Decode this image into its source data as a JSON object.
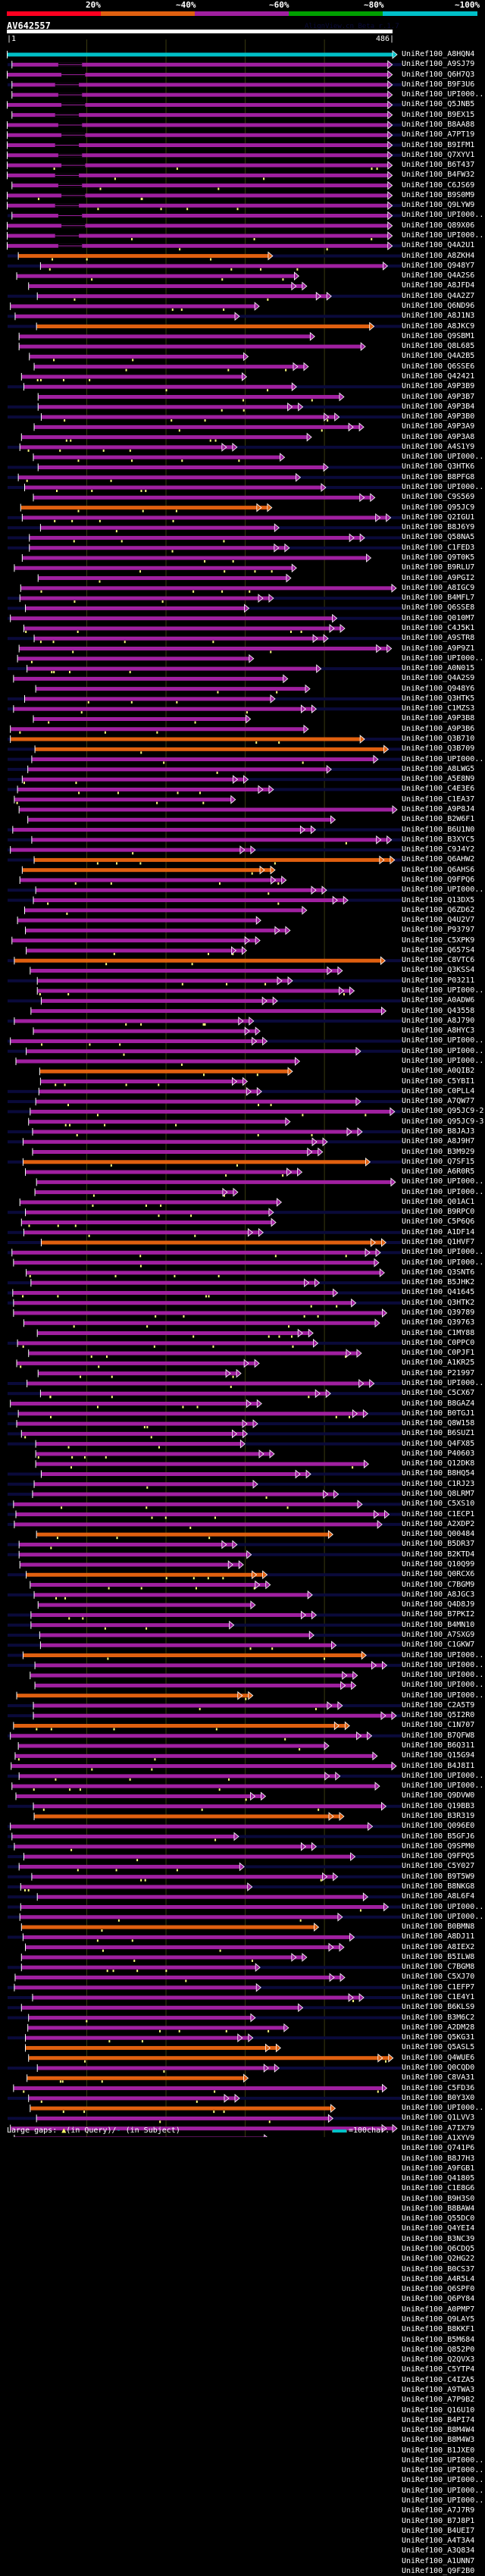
{
  "header": {
    "percent_labels": [
      "20%",
      "~40%",
      "~60%",
      "~80%",
      "~100%"
    ],
    "scale_colors": [
      "#ff0020",
      "#e06010",
      "#a020a0",
      "#00a000",
      "#00c0c8"
    ],
    "query_id": "AV642557",
    "watermark": "AlignView.cn Beta r.1.7",
    "ruler_start": "|1",
    "ruler_end": "486|",
    "query_length": 486
  },
  "colors": {
    "top_hit": "#00c0c8",
    "hit_mid": "#a020a0",
    "hit_low": "#e06010",
    "gap_marker": "#ffff80",
    "gridline": "#3a3a10",
    "subject_extension": "#0a0a3a"
  },
  "footer": {
    "large_gaps_label": "Large gaps:",
    "query_gap_text": "(in Query)/",
    "subject_gap_symbol": "-",
    "subject_gap_text": "(in Subject)",
    "scale_legend": "=100char."
  },
  "hits": [
    {
      "label": "UniRef100_A8HQN4",
      "color": "cyan"
    },
    {
      "label": "UniRef100_A9SJ79",
      "color": "magenta"
    },
    {
      "label": "UniRef100_Q6H7Q3",
      "color": "magenta"
    },
    {
      "label": "UniRef100_B9F3U6",
      "color": "magenta"
    },
    {
      "label": "UniRef100_UPI000..",
      "color": "magenta"
    },
    {
      "label": "UniRef100_Q5JNB5",
      "color": "magenta"
    },
    {
      "label": "UniRef100_B9EX15",
      "color": "magenta"
    },
    {
      "label": "UniRef100_B8AA88",
      "color": "magenta"
    },
    {
      "label": "UniRef100_A7PT19",
      "color": "magenta"
    },
    {
      "label": "UniRef100_B9IFM1",
      "color": "magenta"
    },
    {
      "label": "UniRef100_Q7XYV1",
      "color": "magenta"
    },
    {
      "label": "UniRef100_B6T437",
      "color": "magenta"
    },
    {
      "label": "UniRef100_B4FW32",
      "color": "magenta"
    },
    {
      "label": "UniRef100_C6JS69",
      "color": "magenta"
    },
    {
      "label": "UniRef100_B9S0M9",
      "color": "magenta"
    },
    {
      "label": "UniRef100_Q9LYW9",
      "color": "magenta"
    },
    {
      "label": "UniRef100_UPI000..",
      "color": "magenta"
    },
    {
      "label": "UniRef100_Q89X06",
      "color": "magenta"
    },
    {
      "label": "UniRef100_UPI000..",
      "color": "magenta"
    },
    {
      "label": "UniRef100_Q4A2U1",
      "color": "magenta"
    },
    {
      "label": "UniRef100_A8ZKH4",
      "color": "orange"
    },
    {
      "label": "UniRef100_Q948Y7",
      "color": "magenta"
    },
    {
      "label": "UniRef100_Q4A2S6",
      "color": "magenta"
    },
    {
      "label": "UniRef100_A8JFD4",
      "color": "magenta"
    },
    {
      "label": "UniRef100_Q4A2Z7",
      "color": "magenta"
    },
    {
      "label": "UniRef100_Q6ND96",
      "color": "magenta"
    },
    {
      "label": "UniRef100_A8J1N3",
      "color": "magenta"
    },
    {
      "label": "UniRef100_A8JKC9",
      "color": "orange"
    },
    {
      "label": "UniRef100_Q9SBM1",
      "color": "magenta"
    },
    {
      "label": "UniRef100_Q8L685",
      "color": "magenta"
    },
    {
      "label": "UniRef100_Q4A2B5",
      "color": "magenta"
    },
    {
      "label": "UniRef100_Q6SSE6",
      "color": "magenta"
    },
    {
      "label": "UniRef100_Q42421",
      "color": "magenta"
    },
    {
      "label": "UniRef100_A9P3B9",
      "color": "magenta"
    },
    {
      "label": "UniRef100_A9P3B7",
      "color": "magenta"
    },
    {
      "label": "UniRef100_A9P3B4",
      "color": "magenta"
    },
    {
      "label": "UniRef100_A9P3B0",
      "color": "magenta"
    },
    {
      "label": "UniRef100_A9P3A9",
      "color": "magenta"
    },
    {
      "label": "UniRef100_A9P3A8",
      "color": "magenta"
    },
    {
      "label": "UniRef100_A4S1Y9",
      "color": "magenta"
    },
    {
      "label": "UniRef100_UPI000..",
      "color": "magenta"
    },
    {
      "label": "UniRef100_Q3HTK6",
      "color": "magenta"
    },
    {
      "label": "UniRef100_B8PFG8",
      "color": "magenta"
    },
    {
      "label": "UniRef100_UPI000..",
      "color": "magenta"
    },
    {
      "label": "UniRef100_C9S569",
      "color": "magenta"
    },
    {
      "label": "UniRef100_Q95JC9",
      "color": "orange"
    },
    {
      "label": "UniRef100_Q2IGU1",
      "color": "magenta"
    },
    {
      "label": "UniRef100_B8J6Y9",
      "color": "magenta"
    },
    {
      "label": "UniRef100_Q58NA5",
      "color": "magenta"
    },
    {
      "label": "UniRef100_C1FED3",
      "color": "magenta"
    },
    {
      "label": "UniRef100_Q9T0K5",
      "color": "magenta"
    },
    {
      "label": "UniRef100_B9RLU7",
      "color": "magenta"
    },
    {
      "label": "UniRef100_A9PGI2",
      "color": "magenta"
    },
    {
      "label": "UniRef100_A8IGC9",
      "color": "magenta"
    },
    {
      "label": "UniRef100_B4MFL7",
      "color": "magenta"
    },
    {
      "label": "UniRef100_Q6SSE8",
      "color": "magenta"
    },
    {
      "label": "UniRef100_Q010M7",
      "color": "magenta"
    },
    {
      "label": "UniRef100_C4J5K1",
      "color": "magenta"
    },
    {
      "label": "UniRef100_A9STR8",
      "color": "magenta"
    },
    {
      "label": "UniRef100_A9P9Z1",
      "color": "magenta"
    },
    {
      "label": "UniRef100_UPI000..",
      "color": "magenta"
    },
    {
      "label": "UniRef100_A0N015",
      "color": "magenta"
    },
    {
      "label": "UniRef100_Q4A2S9",
      "color": "magenta"
    },
    {
      "label": "UniRef100_Q948Y6",
      "color": "magenta"
    },
    {
      "label": "UniRef100_Q3HTK5",
      "color": "magenta"
    },
    {
      "label": "UniRef100_C1MZS3",
      "color": "magenta"
    },
    {
      "label": "UniRef100_A9P3B8",
      "color": "magenta"
    },
    {
      "label": "UniRef100_A9P3B6",
      "color": "magenta"
    },
    {
      "label": "UniRef100_Q3B710",
      "color": "orange"
    },
    {
      "label": "UniRef100_Q3B709",
      "color": "orange"
    },
    {
      "label": "UniRef100_UPI000..",
      "color": "magenta"
    },
    {
      "label": "UniRef100_A8LWG5",
      "color": "magenta"
    },
    {
      "label": "UniRef100_A5E8N9",
      "color": "magenta"
    },
    {
      "label": "UniRef100_C4E3E6",
      "color": "magenta"
    },
    {
      "label": "UniRef100_C1EA37",
      "color": "magenta"
    },
    {
      "label": "UniRef100_A9P8J4",
      "color": "magenta"
    },
    {
      "label": "UniRef100_B2W6F1",
      "color": "magenta"
    },
    {
      "label": "UniRef100_B6U1N0",
      "color": "magenta"
    },
    {
      "label": "UniRef100_B3XYC5",
      "color": "magenta"
    },
    {
      "label": "UniRef100_C9J4Y2",
      "color": "magenta"
    },
    {
      "label": "UniRef100_Q6AHW2",
      "color": "orange"
    },
    {
      "label": "UniRef100_Q6AHS6",
      "color": "orange"
    },
    {
      "label": "UniRef100_Q9FPQ6",
      "color": "magenta"
    },
    {
      "label": "UniRef100_UPI000..",
      "color": "magenta"
    },
    {
      "label": "UniRef100_Q13DX5",
      "color": "magenta"
    },
    {
      "label": "UniRef100_Q6ZD62",
      "color": "magenta"
    },
    {
      "label": "UniRef100_Q4U2V7",
      "color": "magenta"
    },
    {
      "label": "UniRef100_P93797",
      "color": "magenta"
    },
    {
      "label": "UniRef100_C5XPK9",
      "color": "magenta"
    },
    {
      "label": "UniRef100_Q657S4",
      "color": "magenta"
    },
    {
      "label": "UniRef100_C8VTC6",
      "color": "orange"
    },
    {
      "label": "UniRef100_Q3KSS4",
      "color": "magenta"
    },
    {
      "label": "UniRef100_P03211",
      "color": "magenta"
    },
    {
      "label": "UniRef100_UPI000..",
      "color": "magenta"
    },
    {
      "label": "UniRef100_A0ADW6",
      "color": "magenta"
    },
    {
      "label": "UniRef100_Q43558",
      "color": "magenta"
    },
    {
      "label": "UniRef100_A8J790",
      "color": "magenta"
    },
    {
      "label": "UniRef100_A8HYC3",
      "color": "magenta"
    },
    {
      "label": "UniRef100_UPI000..",
      "color": "magenta"
    },
    {
      "label": "UniRef100_UPI000..",
      "color": "magenta"
    },
    {
      "label": "UniRef100_UPI000..",
      "color": "magenta"
    },
    {
      "label": "UniRef100_A0QIB2",
      "color": "orange"
    },
    {
      "label": "UniRef100_C5YBI1",
      "color": "magenta"
    },
    {
      "label": "UniRef100_C0PLL4",
      "color": "magenta"
    },
    {
      "label": "UniRef100_A7QW77",
      "color": "magenta"
    },
    {
      "label": "UniRef100_Q95JC9-2",
      "color": "magenta"
    },
    {
      "label": "UniRef100_Q95JC9-3",
      "color": "magenta"
    },
    {
      "label": "UniRef100_B8JAJ3",
      "color": "magenta"
    },
    {
      "label": "UniRef100_A8J9H7",
      "color": "magenta"
    },
    {
      "label": "UniRef100_B3M929",
      "color": "magenta"
    },
    {
      "label": "UniRef100_Q7SF15",
      "color": "orange"
    },
    {
      "label": "UniRef100_A6R0R5",
      "color": "magenta"
    },
    {
      "label": "UniRef100_UPI000..",
      "color": "magenta"
    },
    {
      "label": "UniRef100_UPI000..",
      "color": "magenta"
    },
    {
      "label": "UniRef100_Q01AC1",
      "color": "magenta"
    },
    {
      "label": "UniRef100_B9RPC0",
      "color": "magenta"
    },
    {
      "label": "UniRef100_C5P6Q6",
      "color": "magenta"
    },
    {
      "label": "UniRef100_A1DF14",
      "color": "magenta"
    },
    {
      "label": "UniRef100_Q1HVF7",
      "color": "orange"
    },
    {
      "label": "UniRef100_UPI000..",
      "color": "magenta"
    },
    {
      "label": "UniRef100_UPI000..",
      "color": "magenta"
    },
    {
      "label": "UniRef100_Q3SNT6",
      "color": "magenta"
    },
    {
      "label": "UniRef100_B5JHK2",
      "color": "magenta"
    },
    {
      "label": "UniRef100_Q41645",
      "color": "magenta"
    },
    {
      "label": "UniRef100_Q3HTK2",
      "color": "magenta"
    },
    {
      "label": "UniRef100_Q39789",
      "color": "magenta"
    },
    {
      "label": "UniRef100_Q39763",
      "color": "magenta"
    },
    {
      "label": "UniRef100_C1MY88",
      "color": "magenta"
    },
    {
      "label": "UniRef100_C0PPC0",
      "color": "magenta"
    },
    {
      "label": "UniRef100_C0PJF1",
      "color": "magenta"
    },
    {
      "label": "UniRef100_A1KR25",
      "color": "magenta"
    },
    {
      "label": "UniRef100_P21997",
      "color": "magenta"
    },
    {
      "label": "UniRef100_UPI000..",
      "color": "magenta"
    },
    {
      "label": "UniRef100_C5CX67",
      "color": "magenta"
    },
    {
      "label": "UniRef100_B8GAZ4",
      "color": "magenta"
    },
    {
      "label": "UniRef100_B0TGJ1",
      "color": "magenta"
    },
    {
      "label": "UniRef100_Q8W158",
      "color": "magenta"
    },
    {
      "label": "UniRef100_B6SUZ1",
      "color": "magenta"
    },
    {
      "label": "UniRef100_Q4FX85",
      "color": "magenta"
    },
    {
      "label": "UniRef100_P40603",
      "color": "magenta"
    },
    {
      "label": "UniRef100_Q12DK8",
      "color": "magenta"
    },
    {
      "label": "UniRef100_B8HQ54",
      "color": "magenta"
    },
    {
      "label": "UniRef100_C1RJ23",
      "color": "magenta"
    },
    {
      "label": "UniRef100_Q8LRM7",
      "color": "magenta"
    },
    {
      "label": "UniRef100_C5XS10",
      "color": "magenta"
    },
    {
      "label": "UniRef100_C1ECP1",
      "color": "magenta"
    },
    {
      "label": "UniRef100_A2XDP2",
      "color": "magenta"
    },
    {
      "label": "UniRef100_Q00484",
      "color": "orange"
    },
    {
      "label": "UniRef100_B5DR37",
      "color": "magenta"
    },
    {
      "label": "UniRef100_B2KTD4",
      "color": "magenta"
    },
    {
      "label": "UniRef100_Q10Q99",
      "color": "magenta"
    },
    {
      "label": "UniRef100_Q0RCX6",
      "color": "orange"
    },
    {
      "label": "UniRef100_C7BGM9",
      "color": "magenta"
    },
    {
      "label": "UniRef100_A8JGC3",
      "color": "magenta"
    },
    {
      "label": "UniRef100_Q4D8J9",
      "color": "magenta"
    },
    {
      "label": "UniRef100_B7PKI2",
      "color": "magenta"
    },
    {
      "label": "UniRef100_B4MN10",
      "color": "magenta"
    },
    {
      "label": "UniRef100_A7SXG9",
      "color": "magenta"
    },
    {
      "label": "UniRef100_C1GKW7",
      "color": "magenta"
    },
    {
      "label": "UniRef100_UPI000..",
      "color": "orange"
    },
    {
      "label": "UniRef100_UPI000..",
      "color": "magenta"
    },
    {
      "label": "UniRef100_UPI000..",
      "color": "magenta"
    },
    {
      "label": "UniRef100_UPI000..",
      "color": "magenta"
    },
    {
      "label": "UniRef100_UPI000..",
      "color": "orange"
    },
    {
      "label": "UniRef100_C2A5T9",
      "color": "magenta"
    },
    {
      "label": "UniRef100_Q5I2R0",
      "color": "magenta"
    },
    {
      "label": "UniRef100_C1N707",
      "color": "orange"
    },
    {
      "label": "UniRef100_B7QFW8",
      "color": "magenta"
    },
    {
      "label": "UniRef100_B6Q311",
      "color": "magenta"
    },
    {
      "label": "UniRef100_Q15G94",
      "color": "magenta"
    },
    {
      "label": "UniRef100_B4J8I1",
      "color": "magenta"
    },
    {
      "label": "UniRef100_UPI000..",
      "color": "magenta"
    },
    {
      "label": "UniRef100_UPI000..",
      "color": "magenta"
    },
    {
      "label": "UniRef100_Q9DVW0",
      "color": "magenta"
    },
    {
      "label": "UniRef100_Q19BB3",
      "color": "magenta"
    },
    {
      "label": "UniRef100_B3R319",
      "color": "orange"
    },
    {
      "label": "UniRef100_Q096E0",
      "color": "magenta"
    },
    {
      "label": "UniRef100_B5GFJ6",
      "color": "magenta"
    },
    {
      "label": "UniRef100_Q9SPM0",
      "color": "magenta"
    },
    {
      "label": "UniRef100_Q9FPQ5",
      "color": "magenta"
    },
    {
      "label": "UniRef100_C5Y027",
      "color": "magenta"
    },
    {
      "label": "UniRef100_B9T5W9",
      "color": "magenta"
    },
    {
      "label": "UniRef100_B8NKG8",
      "color": "magenta"
    },
    {
      "label": "UniRef100_A8L6F4",
      "color": "magenta"
    },
    {
      "label": "UniRef100_UPI000..",
      "color": "magenta"
    },
    {
      "label": "UniRef100_UPI000..",
      "color": "magenta"
    },
    {
      "label": "UniRef100_B0BMN8",
      "color": "orange"
    },
    {
      "label": "UniRef100_A8DJ11",
      "color": "magenta"
    },
    {
      "label": "UniRef100_A8IEX2",
      "color": "magenta"
    },
    {
      "label": "UniRef100_B5ILW8",
      "color": "magenta"
    },
    {
      "label": "UniRef100_C7BGM8",
      "color": "magenta"
    },
    {
      "label": "UniRef100_C5XJ70",
      "color": "magenta"
    },
    {
      "label": "UniRef100_C1EFP7",
      "color": "magenta"
    },
    {
      "label": "UniRef100_C1E4Y1",
      "color": "magenta"
    },
    {
      "label": "UniRef100_B6KLS9",
      "color": "magenta"
    },
    {
      "label": "UniRef100_B3M6C2",
      "color": "magenta"
    },
    {
      "label": "UniRef100_A2DM28",
      "color": "magenta"
    },
    {
      "label": "UniRef100_Q5KG31",
      "color": "magenta"
    },
    {
      "label": "UniRef100_Q5ASL5",
      "color": "orange"
    },
    {
      "label": "UniRef100_Q4WUE6",
      "color": "orange"
    },
    {
      "label": "UniRef100_Q0CQD0",
      "color": "magenta"
    },
    {
      "label": "UniRef100_C8VA31",
      "color": "orange"
    },
    {
      "label": "UniRef100_C5FD36",
      "color": "magenta"
    },
    {
      "label": "UniRef100_B0Y3X0",
      "color": "magenta"
    },
    {
      "label": "UniRef100_UPI000..",
      "color": "orange"
    },
    {
      "label": "UniRef100_Q1LVV3",
      "color": "magenta"
    },
    {
      "label": "UniRef100_A7IX79",
      "color": "magenta"
    },
    {
      "label": "UniRef100_A1XYV9",
      "color": "magenta"
    },
    {
      "label": "UniRef100_Q741P6",
      "color": "magenta"
    },
    {
      "label": "UniRef100_B8J7H3",
      "color": "magenta"
    },
    {
      "label": "UniRef100_A9FGB1",
      "color": "magenta"
    },
    {
      "label": "UniRef100_Q41805",
      "color": "magenta"
    },
    {
      "label": "UniRef100_C1E8G6",
      "color": "magenta"
    },
    {
      "label": "UniRef100_B9H3S0",
      "color": "magenta"
    },
    {
      "label": "UniRef100_B8BAW4",
      "color": "magenta"
    },
    {
      "label": "UniRef100_Q55DC0",
      "color": "magenta"
    },
    {
      "label": "UniRef100_Q4YEI4",
      "color": "magenta"
    },
    {
      "label": "UniRef100_B3NC39",
      "color": "orange"
    },
    {
      "label": "UniRef100_Q6CDQ5",
      "color": "magenta"
    },
    {
      "label": "UniRef100_Q2HG22",
      "color": "magenta"
    },
    {
      "label": "UniRef100_B0CS37",
      "color": "magenta"
    },
    {
      "label": "UniRef100_A4R5L4",
      "color": "magenta"
    },
    {
      "label": "UniRef100_Q6SPF0",
      "color": "magenta"
    },
    {
      "label": "UniRef100_Q6PY84",
      "color": "magenta"
    },
    {
      "label": "UniRef100_A0PMP7",
      "color": "magenta"
    },
    {
      "label": "UniRef100_Q9LAY5",
      "color": "magenta"
    },
    {
      "label": "UniRef100_B8KKF1",
      "color": "magenta"
    },
    {
      "label": "UniRef100_B5M684",
      "color": "magenta"
    },
    {
      "label": "UniRef100_Q852P0",
      "color": "orange"
    },
    {
      "label": "UniRef100_Q2QVX3",
      "color": "magenta"
    },
    {
      "label": "UniRef100_C5YTP4",
      "color": "magenta"
    },
    {
      "label": "UniRef100_C4IZA5",
      "color": "orange"
    },
    {
      "label": "UniRef100_A9TWA3",
      "color": "magenta"
    },
    {
      "label": "UniRef100_A7P9B2",
      "color": "orange"
    },
    {
      "label": "UniRef100_Q16U10",
      "color": "magenta"
    },
    {
      "label": "UniRef100_B4PI74",
      "color": "orange"
    },
    {
      "label": "UniRef100_B8M4W4",
      "color": "magenta"
    },
    {
      "label": "UniRef100_B8M4W3",
      "color": "magenta"
    },
    {
      "label": "UniRef100_B1JXE0",
      "color": "magenta"
    },
    {
      "label": "UniRef100_UPI000..",
      "color": "magenta"
    },
    {
      "label": "UniRef100_UPI000..",
      "color": "magenta"
    },
    {
      "label": "UniRef100_UPI000..",
      "color": "magenta"
    },
    {
      "label": "UniRef100_UPI000..",
      "color": "magenta"
    },
    {
      "label": "UniRef100_UPI000..",
      "color": "magenta"
    },
    {
      "label": "UniRef100_A7J7R9",
      "color": "magenta"
    },
    {
      "label": "UniRef100_B7J8P1",
      "color": "magenta"
    },
    {
      "label": "UniRef100_B4UEI7",
      "color": "magenta"
    },
    {
      "label": "UniRef100_A4T3A4",
      "color": "magenta"
    },
    {
      "label": "UniRef100_A3Q834",
      "color": "orange"
    },
    {
      "label": "UniRef100_A1UNN7",
      "color": "orange"
    },
    {
      "label": "UniRef100_Q9F2B0",
      "color": "magenta"
    }
  ]
}
